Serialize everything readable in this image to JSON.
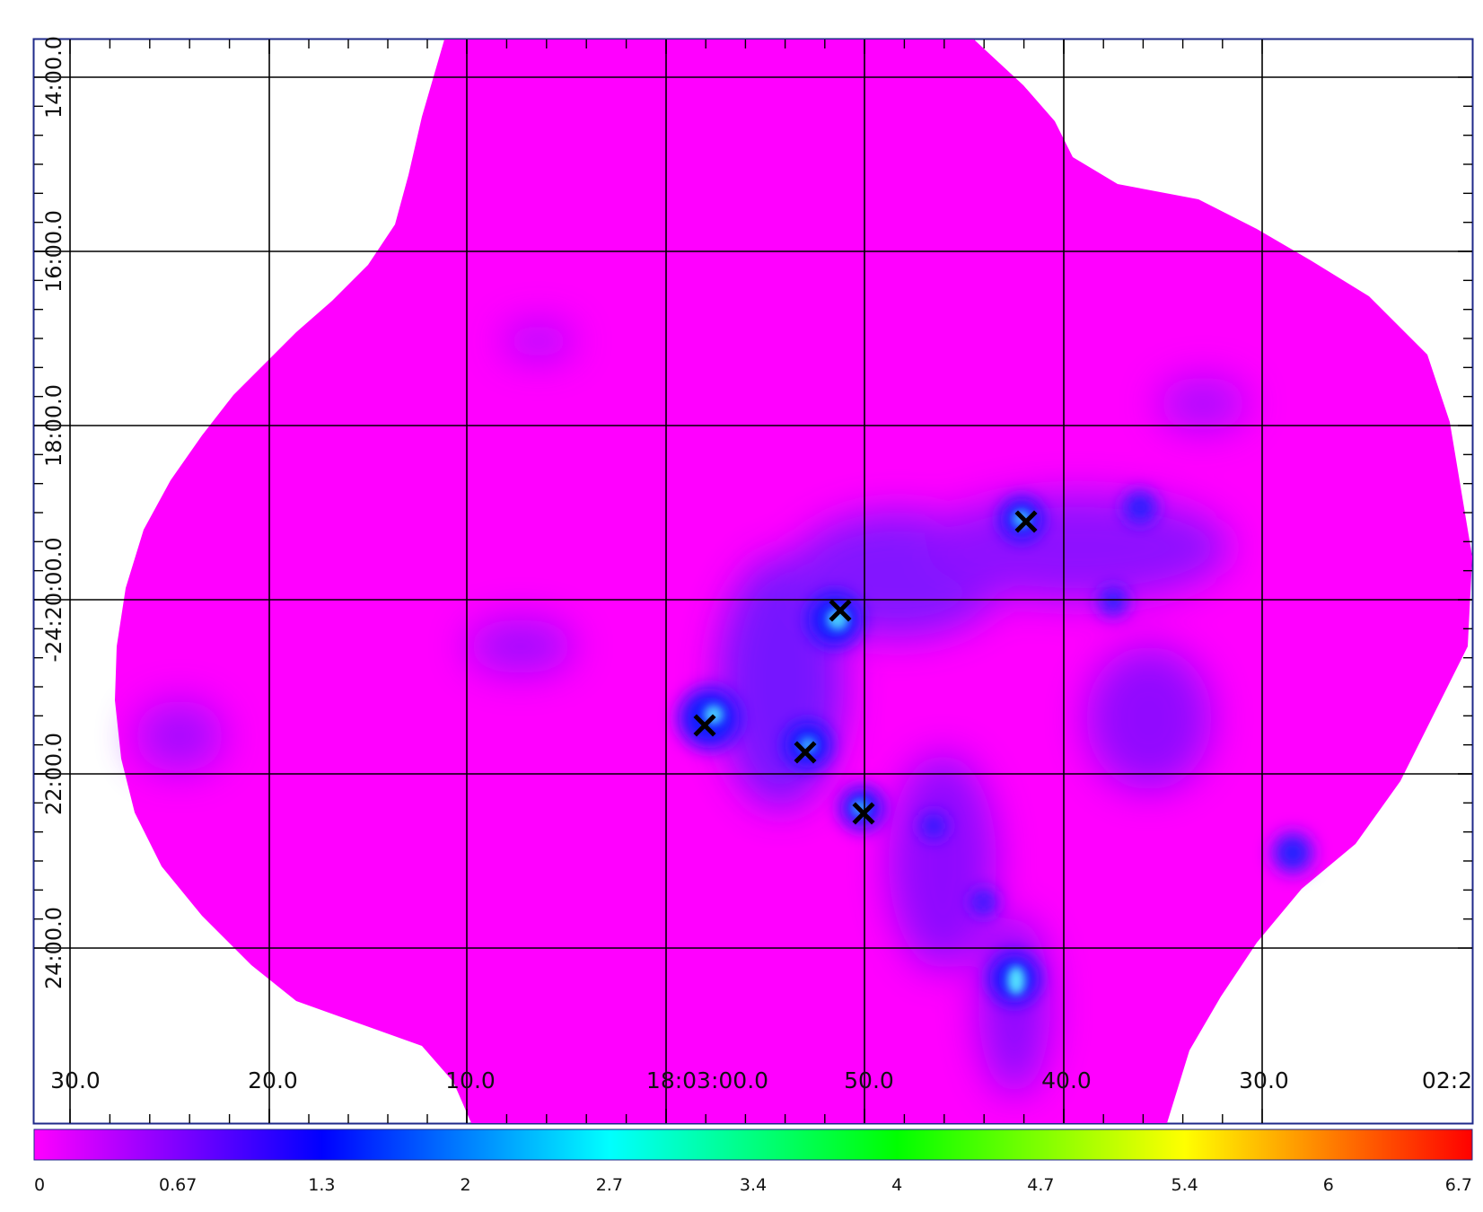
{
  "chart_data": {
    "type": "heatmap",
    "title": "",
    "xlabel": "",
    "ylabel": "",
    "grid": true,
    "x_axis": {
      "tick_labels": [
        "30.0",
        "20.0",
        "10.0",
        "18:03:00.0",
        "50.0",
        "40.0",
        "30.0",
        "02:2"
      ]
    },
    "y_axis": {
      "tick_labels": [
        "14:00.0",
        "16:00.0",
        "18:00.0",
        "-24:20:00.0",
        "22:00.0",
        "24:00.0"
      ]
    },
    "colorbar": {
      "tick_labels": [
        "0",
        "0.67",
        "1.3",
        "2",
        "2.7",
        "3.4",
        "4",
        "4.7",
        "5.4",
        "6",
        "6.7"
      ],
      "colors": [
        "#ff00ff",
        "#0000ff",
        "#00ffff",
        "#00ff00",
        "#ffff00",
        "#ff0000"
      ]
    },
    "markers": {
      "symbol": "x",
      "count": 5
    },
    "colors": {
      "background_map": "#ff00ff",
      "grid_line": "#000000",
      "frame": "#1f2a8a"
    }
  }
}
